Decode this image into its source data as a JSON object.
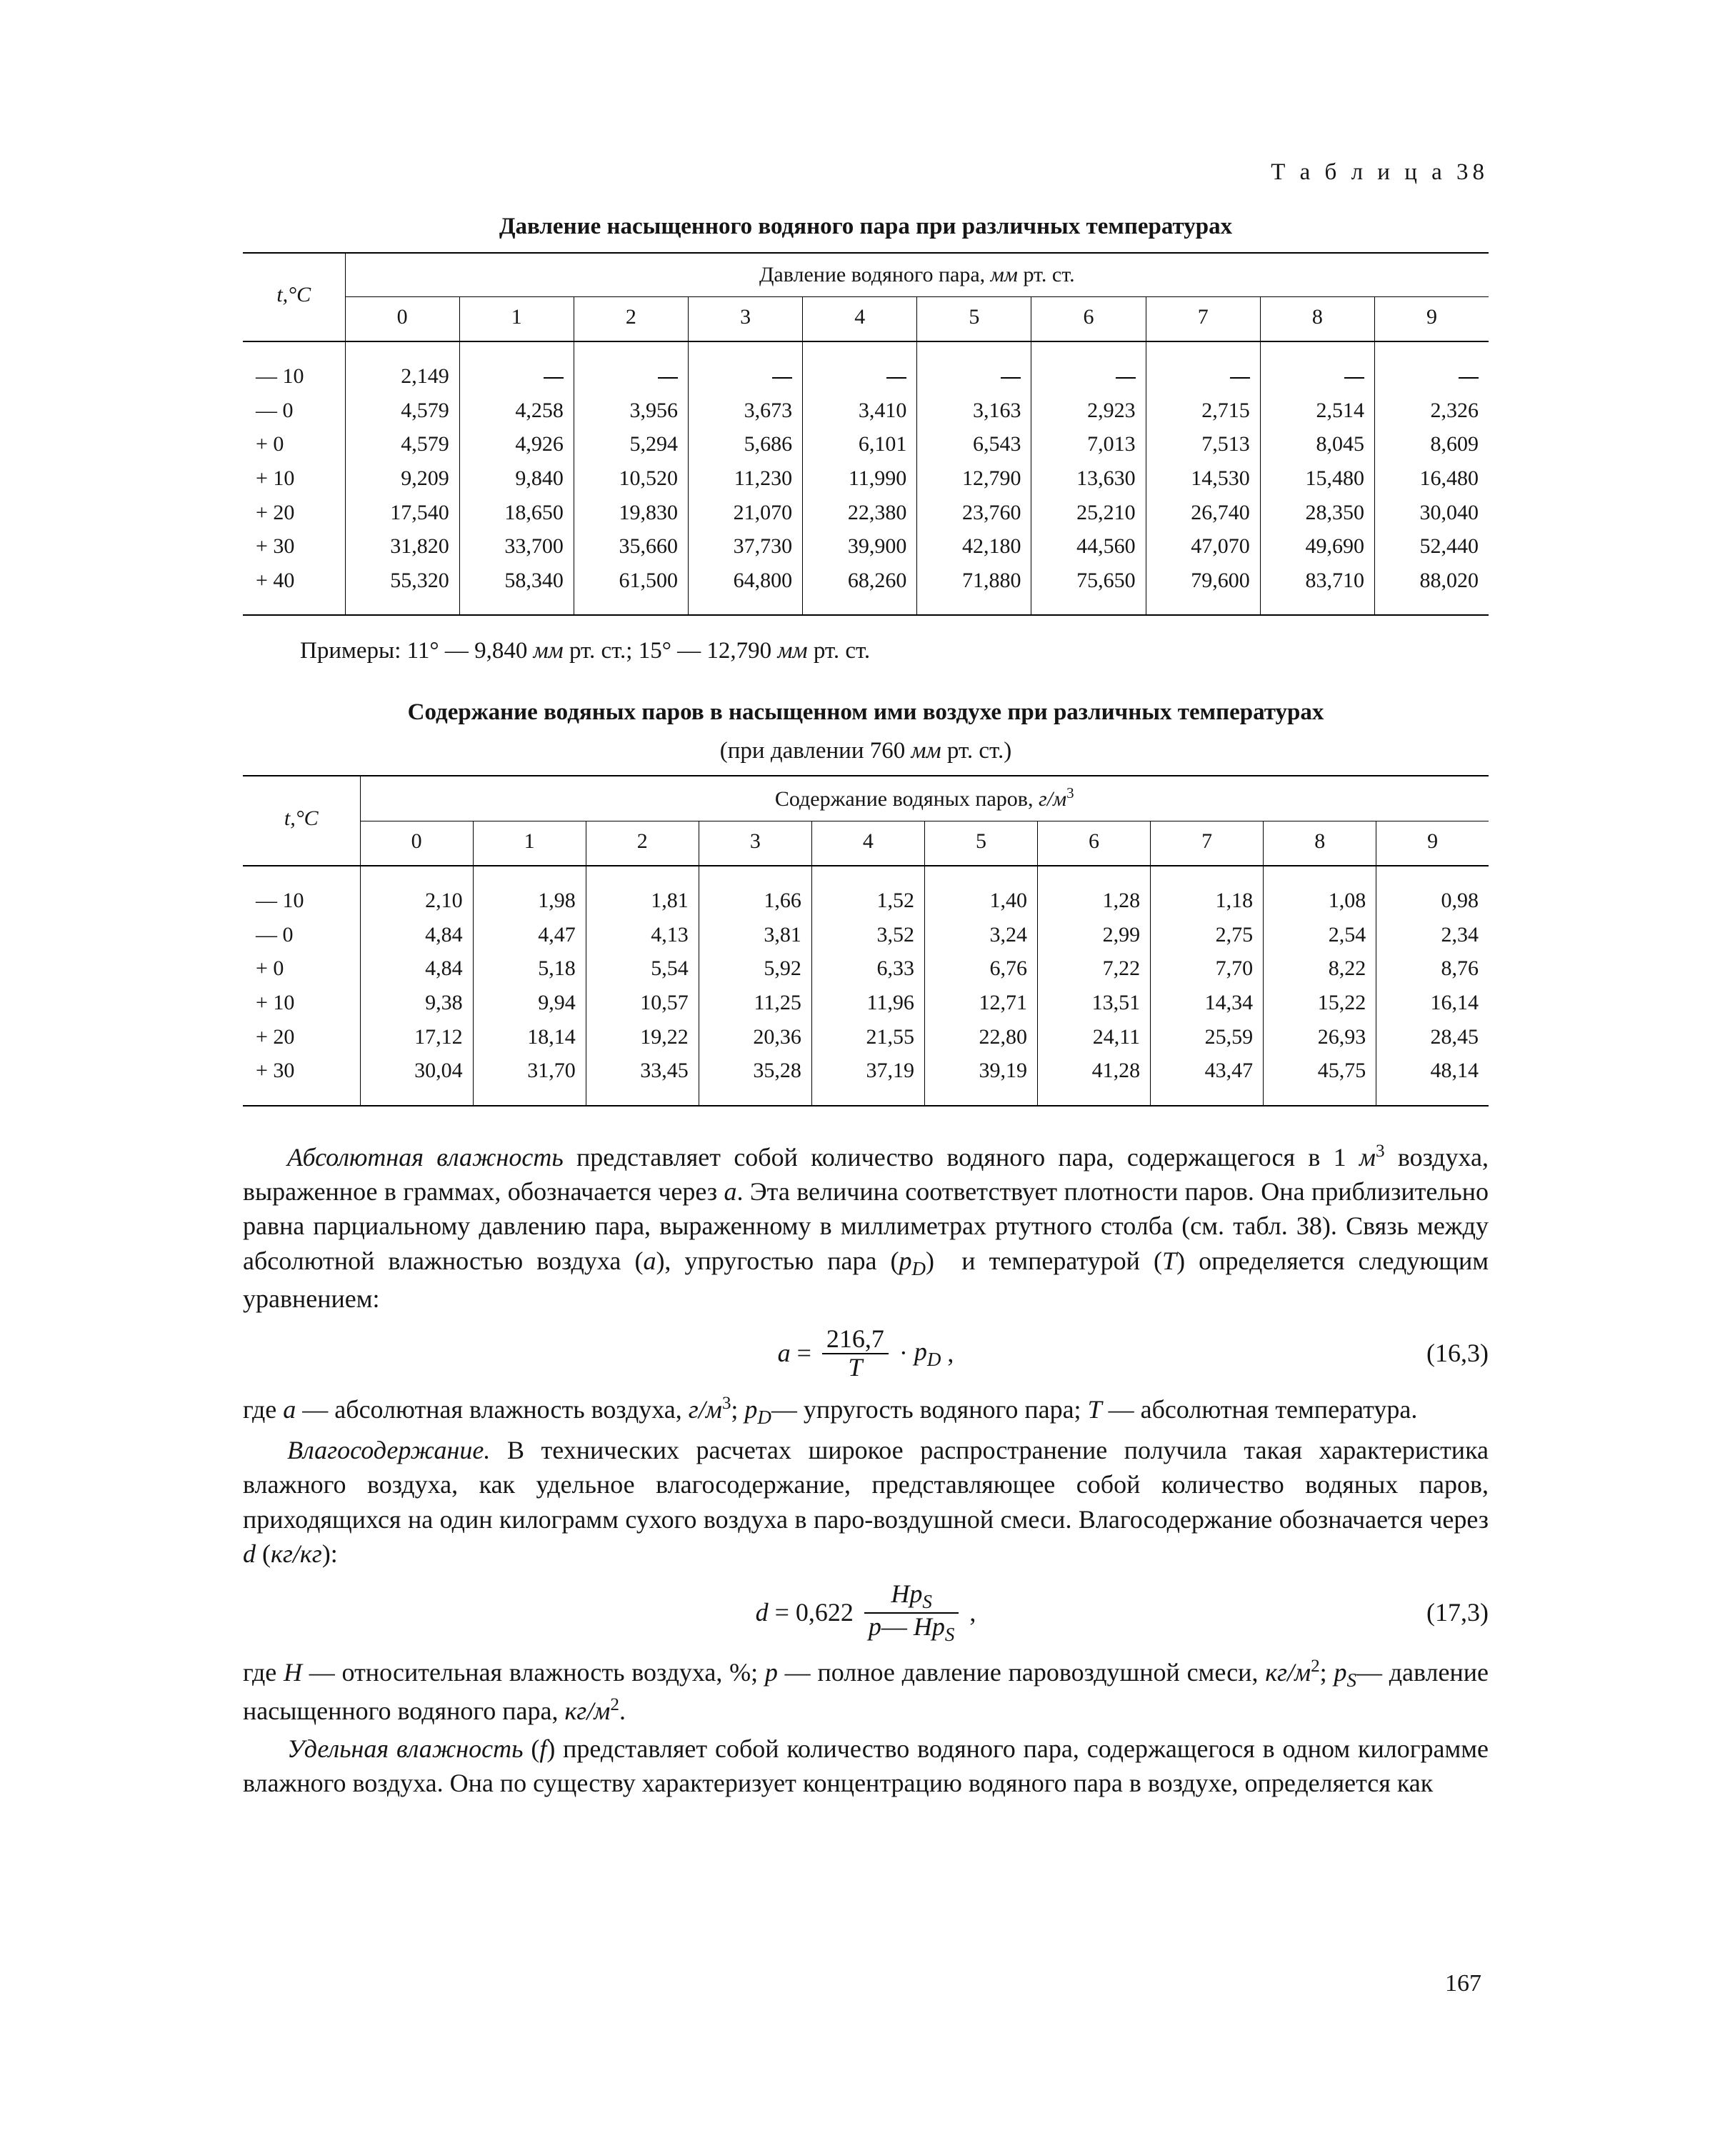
{
  "tableLabel": "Т а б л и ц а 38",
  "table1": {
    "title": "Давление насыщенного водяного пара при различных температурах",
    "superHeader": "Давление водяного пара, мм рт. ст.",
    "rowHeader": "t,°C",
    "cols": [
      "0",
      "1",
      "2",
      "3",
      "4",
      "5",
      "6",
      "7",
      "8",
      "9"
    ],
    "rows": [
      {
        "t": "— 10",
        "v": [
          "2,149",
          "—",
          "—",
          "—",
          "—",
          "—",
          "—",
          "—",
          "—",
          "—"
        ]
      },
      {
        "t": "— 0",
        "v": [
          "4,579",
          "4,258",
          "3,956",
          "3,673",
          "3,410",
          "3,163",
          "2,923",
          "2,715",
          "2,514",
          "2,326"
        ]
      },
      {
        "t": "+ 0",
        "v": [
          "4,579",
          "4,926",
          "5,294",
          "5,686",
          "6,101",
          "6,543",
          "7,013",
          "7,513",
          "8,045",
          "8,609"
        ]
      },
      {
        "t": "+ 10",
        "v": [
          "9,209",
          "9,840",
          "10,520",
          "11,230",
          "11,990",
          "12,790",
          "13,630",
          "14,530",
          "15,480",
          "16,480"
        ]
      },
      {
        "t": "+ 20",
        "v": [
          "17,540",
          "18,650",
          "19,830",
          "21,070",
          "22,380",
          "23,760",
          "25,210",
          "26,740",
          "28,350",
          "30,040"
        ]
      },
      {
        "t": "+ 30",
        "v": [
          "31,820",
          "33,700",
          "35,660",
          "37,730",
          "39,900",
          "42,180",
          "44,560",
          "47,070",
          "49,690",
          "52,440"
        ]
      },
      {
        "t": "+ 40",
        "v": [
          "55,320",
          "58,340",
          "61,500",
          "64,800",
          "68,260",
          "71,880",
          "75,650",
          "79,600",
          "83,710",
          "88,020"
        ]
      }
    ]
  },
  "examples": "Примеры: 11° — 9,840 мм рт. ст.; 15° — 12,790 мм рт. ст.",
  "table2": {
    "title": "Содержание водяных паров в насыщенном ими воздухе при различных температурах",
    "subtitle": "(при давлении 760 мм рт. ст.)",
    "superHeader": "Содержание водяных паров, г/м³",
    "rowHeader": "t,°C",
    "cols": [
      "0",
      "1",
      "2",
      "3",
      "4",
      "5",
      "6",
      "7",
      "8",
      "9"
    ],
    "rows": [
      {
        "t": "— 10",
        "v": [
          "2,10",
          "1,98",
          "1,81",
          "1,66",
          "1,52",
          "1,40",
          "1,28",
          "1,18",
          "1,08",
          "0,98"
        ]
      },
      {
        "t": "— 0",
        "v": [
          "4,84",
          "4,47",
          "4,13",
          "3,81",
          "3,52",
          "3,24",
          "2,99",
          "2,75",
          "2,54",
          "2,34"
        ]
      },
      {
        "t": "+ 0",
        "v": [
          "4,84",
          "5,18",
          "5,54",
          "5,92",
          "6,33",
          "6,76",
          "7,22",
          "7,70",
          "8,22",
          "8,76"
        ]
      },
      {
        "t": "+ 10",
        "v": [
          "9,38",
          "9,94",
          "10,57",
          "11,25",
          "11,96",
          "12,71",
          "13,51",
          "14,34",
          "15,22",
          "16,14"
        ]
      },
      {
        "t": "+ 20",
        "v": [
          "17,12",
          "18,14",
          "19,22",
          "20,36",
          "21,55",
          "22,80",
          "24,11",
          "25,59",
          "26,93",
          "28,45"
        ]
      },
      {
        "t": "+ 30",
        "v": [
          "30,04",
          "31,70",
          "33,45",
          "35,28",
          "37,19",
          "39,19",
          "41,28",
          "43,47",
          "45,75",
          "48,14"
        ]
      }
    ]
  },
  "para1a": "Абсолютная влажность",
  "para1b": " представляет собой количество водяного пара, содержащегося в 1 м³ воздуха, выраженное в граммах, обозначается через a. Эта величина соответствует плотности паров. Она приблизительно равна парциальному давлению пара, выраженному в миллиметрах ртутного столба (см. табл. 38). Связь между абсолютной влажностью воздуха (a), упруго­стью пара (p_D)  и температурой (T) определяется следующим уравнением:",
  "eq1": {
    "lhs": "a =",
    "num": "216,7",
    "den": "T",
    "rhs": "· p_D ,",
    "tag": "(16,3)"
  },
  "para2": "где a — абсолютная влажность воздуха, г/м³; p_D— упругость водяного пара; T — абсолютная температура.",
  "para3a": "Влагосодержание.",
  "para3b": " В технических расчетах широкое распространение получила такая характеристика влажного воздуха, как удельное влагосо­держание, представляющее собой количество водяных паров, приходящих­ся на один килограмм сухого воздуха в паро-воздушной смеси. Влагосодер­жание обозначается через d (кг/кг):",
  "eq2": {
    "lhs": "d = 0,622",
    "num": "Hp_S",
    "den": "p— Hp_S",
    "rhs": " ,",
    "tag": "(17,3)"
  },
  "para4": "где H — относительная влажность воздуха, %; p — полное давление паро­воздушной смеси, кг/м²; p_S— давление насыщенного водяного пара, кг/м².",
  "para5a": "Удельная влажность",
  "para5b": " (f) представляет собой количество водяного пара, содержащегося в одном килограмме влажного воздуха. Она по существу характеризует концентрацию водяного пара в воздухе, определяется как",
  "pageNumber": "167"
}
